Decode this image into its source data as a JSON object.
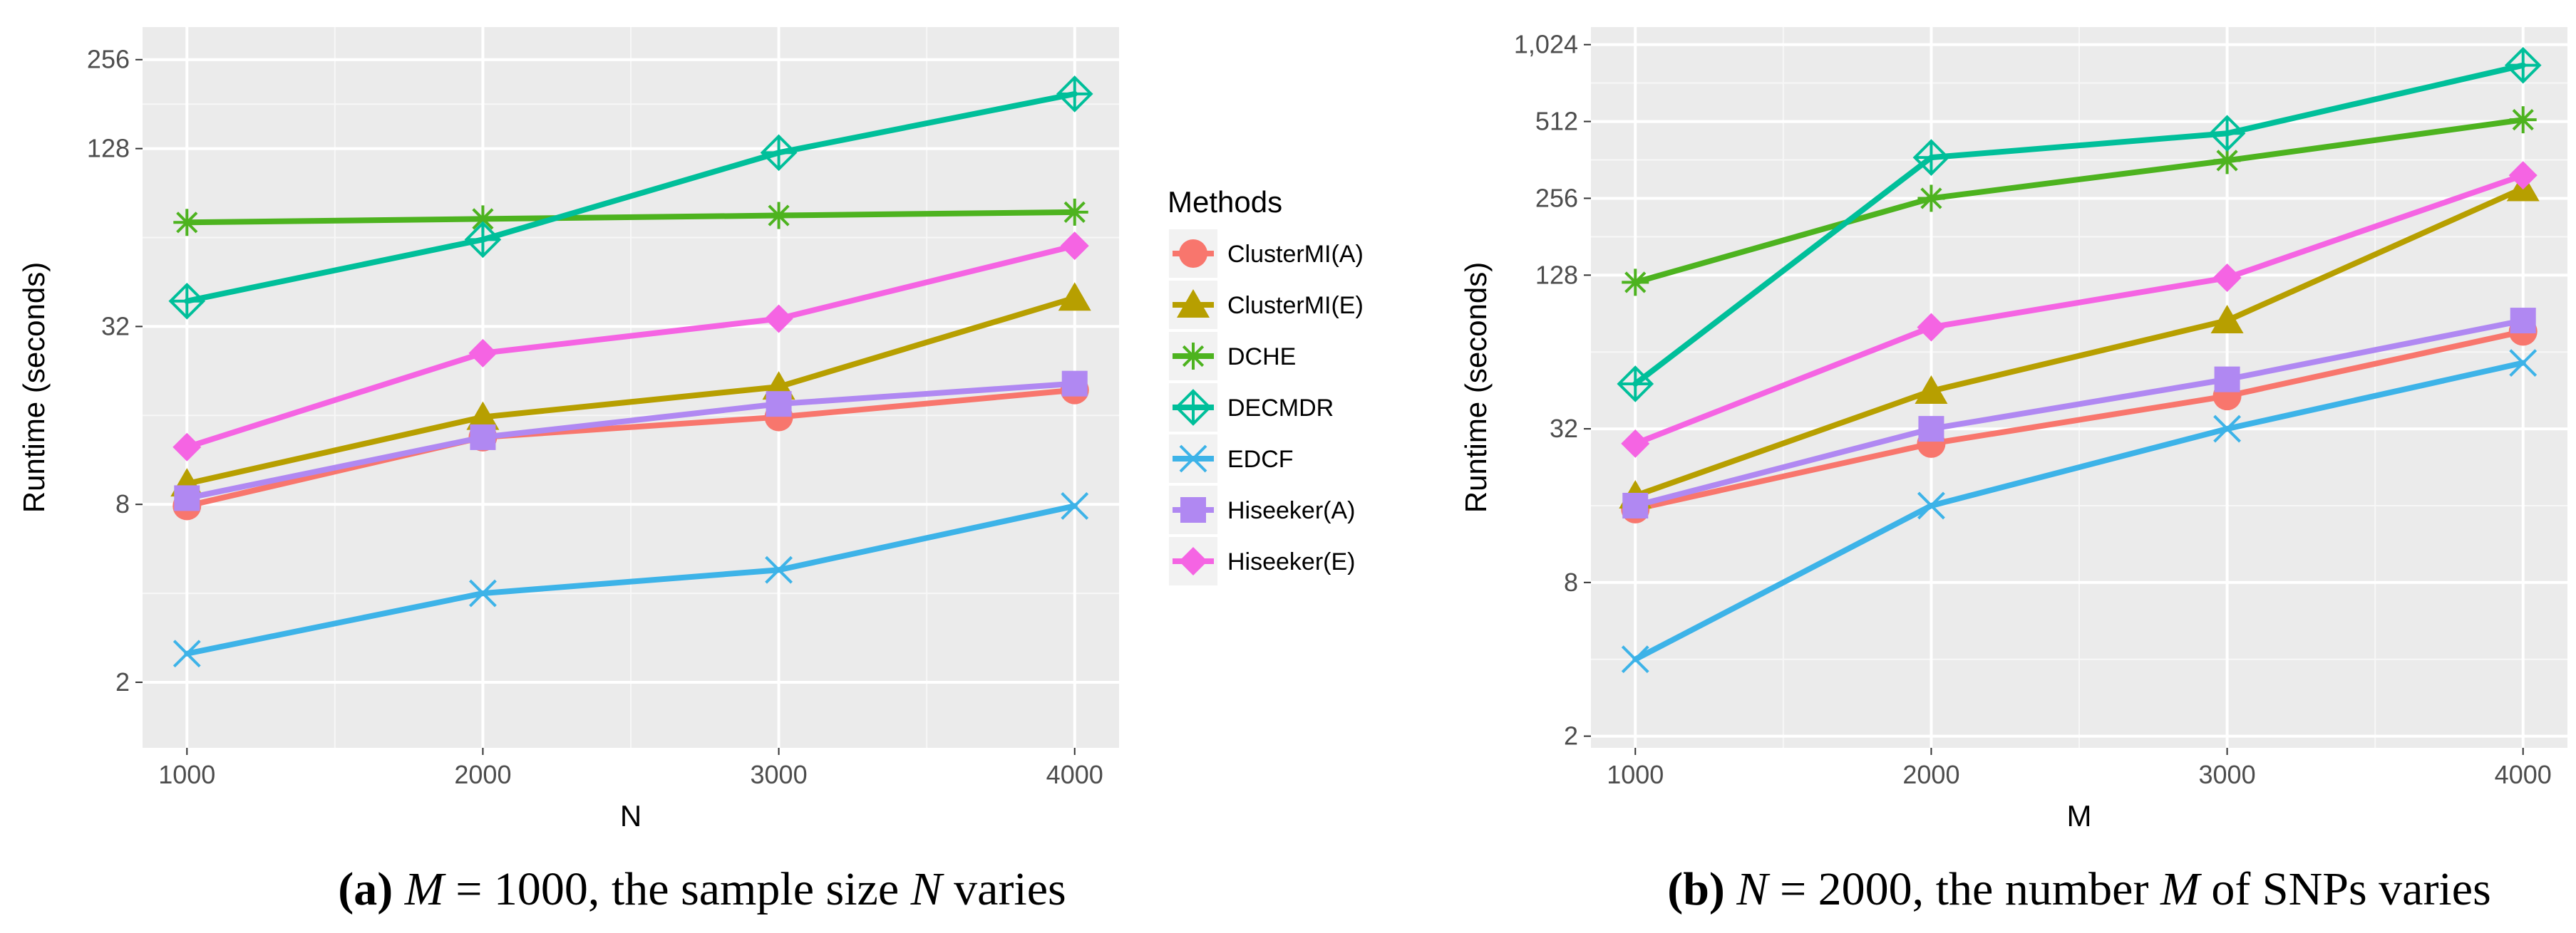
{
  "legend": {
    "title": "Methods",
    "colors": {
      "ClusterMI(A)": "#F8766D",
      "ClusterMI(E)": "#B79F00",
      "DCHE": "#4DB31F",
      "DECMDR": "#00BF9A",
      "EDCF": "#3DB3E8",
      "Hiseeker(A)": "#B088F2",
      "Hiseeker(E)": "#F564E3"
    },
    "markers": {
      "ClusterMI(A)": "circle",
      "ClusterMI(E)": "triangle",
      "DCHE": "asterisk",
      "DECMDR": "diamond-plus",
      "EDCF": "x",
      "Hiseeker(A)": "square",
      "Hiseeker(E)": "diamond"
    }
  },
  "chart_data": [
    {
      "type": "line",
      "scale": "log2",
      "xlabel": "N",
      "ylabel": "Runtime (seconds)",
      "x": [
        1000,
        2000,
        3000,
        4000
      ],
      "xticks": [
        1000,
        2000,
        3000,
        4000
      ],
      "xtick_labels": [
        "1000",
        "2000",
        "3000",
        "4000"
      ],
      "xlim": [
        850,
        4150
      ],
      "yticks": [
        2,
        8,
        32,
        128,
        256
      ],
      "ytick_labels": [
        "2",
        "8",
        "32",
        "128",
        "256"
      ],
      "ylim": [
        1.2,
        330
      ],
      "caption": {
        "label": "(a)",
        "math_var": "M",
        "math_value": "= 1000,",
        "text_before": "the sample size",
        "math_var2": "N",
        "text_after": "varies"
      },
      "series": [
        {
          "name": "ClusterMI(A)",
          "values": [
            7.9,
            13.5,
            15.8,
            19.5
          ]
        },
        {
          "name": "ClusterMI(E)",
          "values": [
            9.4,
            15.8,
            20.0,
            40.0
          ]
        },
        {
          "name": "DCHE",
          "values": [
            72.0,
            74.0,
            76.0,
            78.0
          ]
        },
        {
          "name": "DECMDR",
          "values": [
            39.0,
            63.0,
            124.0,
            196.0
          ]
        },
        {
          "name": "EDCF",
          "values": [
            2.5,
            4.0,
            4.8,
            7.9
          ]
        },
        {
          "name": "Hiseeker(A)",
          "values": [
            8.4,
            13.5,
            17.5,
            20.5
          ]
        },
        {
          "name": "Hiseeker(E)",
          "values": [
            12.5,
            26.0,
            34.0,
            60.0
          ]
        }
      ]
    },
    {
      "type": "line",
      "scale": "log2",
      "xlabel": "M",
      "ylabel": "Runtime (seconds)",
      "x": [
        1000,
        2000,
        3000,
        4000
      ],
      "xticks": [
        1000,
        2000,
        3000,
        4000
      ],
      "xtick_labels": [
        "1000",
        "2000",
        "3000",
        "4000"
      ],
      "xlim": [
        850,
        4150
      ],
      "yticks": [
        2,
        8,
        32,
        128,
        256,
        512,
        1024
      ],
      "ytick_labels": [
        "2",
        "8",
        "32",
        "128",
        "256",
        "512",
        "1,024"
      ],
      "ylim": [
        1.8,
        1200
      ],
      "caption": {
        "label": "(b)",
        "math_var": "N",
        "math_value": "= 2000,",
        "text_before": "the number",
        "math_var2": "M",
        "text_after": "of SNPs varies"
      },
      "series": [
        {
          "name": "ClusterMI(A)",
          "values": [
            15.5,
            28.0,
            43.0,
            77.0
          ]
        },
        {
          "name": "ClusterMI(E)",
          "values": [
            17.5,
            45.0,
            85.0,
            280.0
          ]
        },
        {
          "name": "DCHE",
          "values": [
            120.0,
            256.0,
            360.0,
            520.0
          ]
        },
        {
          "name": "DECMDR",
          "values": [
            48.0,
            370.0,
            460.0,
            850.0
          ]
        },
        {
          "name": "EDCF",
          "values": [
            4.0,
            16.0,
            32.0,
            58.0
          ]
        },
        {
          "name": "Hiseeker(A)",
          "values": [
            16.0,
            32.0,
            50.0,
            85.0
          ]
        },
        {
          "name": "Hiseeker(E)",
          "values": [
            28.0,
            80.0,
            125.0,
            315.0
          ]
        }
      ]
    }
  ]
}
